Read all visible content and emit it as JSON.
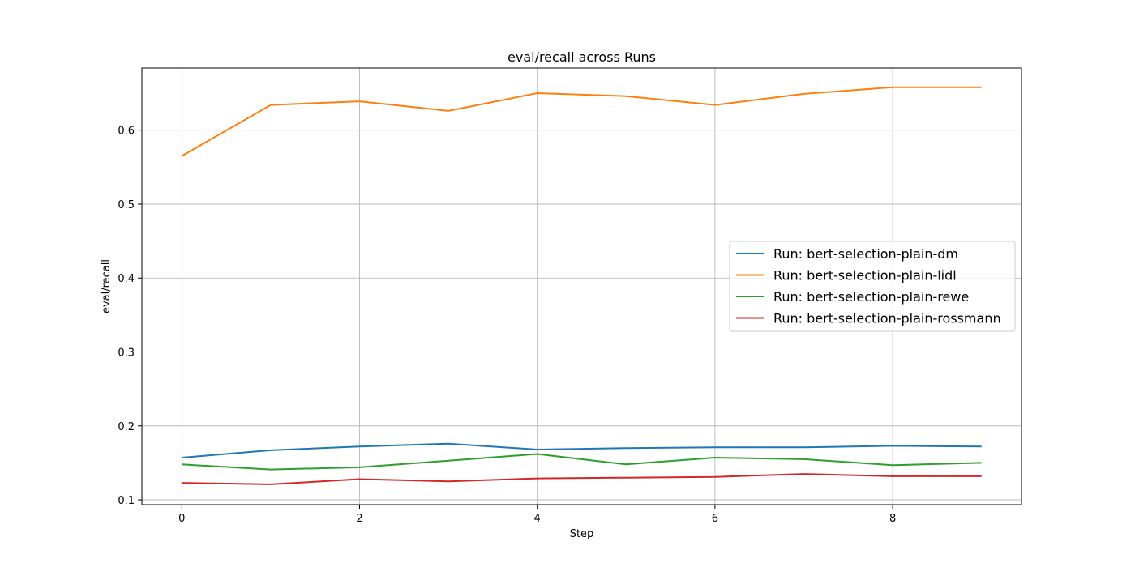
{
  "chart_data": {
    "type": "line",
    "title": "eval/recall across Runs",
    "xlabel": "Step",
    "ylabel": "eval/recall",
    "x": [
      0,
      1,
      2,
      3,
      4,
      5,
      6,
      7,
      8,
      9
    ],
    "xlim": [
      -0.45,
      9.45
    ],
    "ylim": [
      0.0935,
      0.684
    ],
    "xticks": [
      0,
      2,
      4,
      6,
      8
    ],
    "yticks": [
      0.1,
      0.2,
      0.3,
      0.4,
      0.5,
      0.6
    ],
    "ytick_labels": [
      "0.1",
      "0.2",
      "0.3",
      "0.4",
      "0.5",
      "0.6"
    ],
    "grid": true,
    "legend_position": "center-right",
    "series": [
      {
        "name": "Run: bert-selection-plain-dm",
        "color": "#1f77b4",
        "values": [
          0.157,
          0.167,
          0.172,
          0.176,
          0.168,
          0.17,
          0.171,
          0.171,
          0.173,
          0.172
        ]
      },
      {
        "name": "Run: bert-selection-plain-lidl",
        "color": "#ff7f0e",
        "values": [
          0.565,
          0.634,
          0.639,
          0.626,
          0.65,
          0.646,
          0.634,
          0.649,
          0.658,
          0.658
        ]
      },
      {
        "name": "Run: bert-selection-plain-rewe",
        "color": "#2ca02c",
        "values": [
          0.148,
          0.141,
          0.144,
          0.153,
          0.162,
          0.148,
          0.157,
          0.155,
          0.147,
          0.15
        ]
      },
      {
        "name": "Run: bert-selection-plain-rossmann",
        "color": "#d62728",
        "values": [
          0.123,
          0.121,
          0.128,
          0.125,
          0.129,
          0.13,
          0.131,
          0.135,
          0.132,
          0.132
        ]
      }
    ]
  }
}
